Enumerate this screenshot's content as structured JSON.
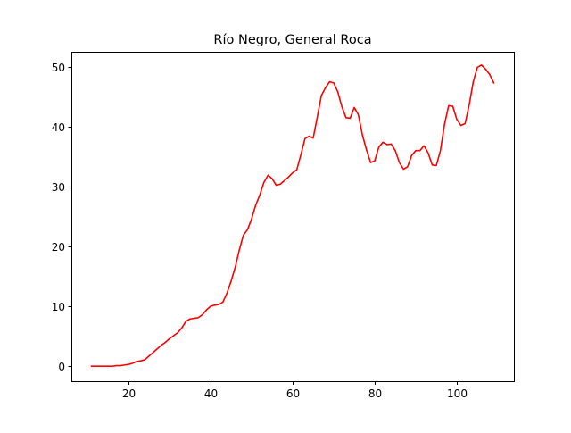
{
  "chart_data": {
    "type": "line",
    "title": "Río Negro, General Roca",
    "xlabel": "",
    "ylabel": "",
    "xlim": [
      6.1,
      113.9
    ],
    "ylim": [
      -2.5,
      52.5
    ],
    "x_ticks": [
      20,
      40,
      60,
      80,
      100
    ],
    "y_ticks": [
      0,
      10,
      20,
      30,
      40,
      50
    ],
    "grid": false,
    "legend": "none",
    "series": [
      {
        "color": "#ff0000",
        "x": [
          11,
          12,
          13,
          14,
          15,
          16,
          17,
          18,
          19,
          20,
          21,
          22,
          23,
          24,
          25,
          26,
          27,
          28,
          29,
          30,
          31,
          32,
          33,
          34,
          35,
          36,
          37,
          38,
          39,
          40,
          41,
          42,
          43,
          44,
          45,
          46,
          47,
          48,
          49,
          50,
          51,
          52,
          53,
          54,
          55,
          56,
          57,
          58,
          59,
          60,
          61,
          62,
          63,
          64,
          65,
          66,
          67,
          68,
          69,
          70,
          71,
          72,
          73,
          74,
          75,
          76,
          77,
          78,
          79,
          80,
          81,
          82,
          83,
          84,
          85,
          86,
          87,
          88,
          89,
          90,
          91,
          92,
          93,
          94,
          95,
          96,
          97,
          98,
          99,
          100,
          101,
          102,
          103,
          104,
          105,
          106,
          107,
          108,
          109
        ],
        "y": [
          0,
          0,
          0,
          0,
          0,
          0,
          0.1,
          0.1,
          0.2,
          0.3,
          0.5,
          0.8,
          0.9,
          1.1,
          1.7,
          2.3,
          2.9,
          3.5,
          4.0,
          4.6,
          5.1,
          5.6,
          6.4,
          7.5,
          7.9,
          8.0,
          8.1,
          8.6,
          9.4,
          10.0,
          10.2,
          10.3,
          10.7,
          12.2,
          14.2,
          16.5,
          19.4,
          21.9,
          22.8,
          24.6,
          26.9,
          28.6,
          30.7,
          31.9,
          31.3,
          30.2,
          30.4,
          31.0,
          31.6,
          32.3,
          32.8,
          35.3,
          38.0,
          38.4,
          38.1,
          41.6,
          45.2,
          46.5,
          47.5,
          47.3,
          45.8,
          43.3,
          41.5,
          41.4,
          43.2,
          42.0,
          38.6,
          36.1,
          34.0,
          34.3,
          36.6,
          37.4,
          37.0,
          37.1,
          36.0,
          34.0,
          32.9,
          33.3,
          35.2,
          36.0,
          36.0,
          36.8,
          35.6,
          33.6,
          33.5,
          36.0,
          40.4,
          43.5,
          43.4,
          41.2,
          40.2,
          40.5,
          43.6,
          47.5,
          49.9,
          50.3,
          49.6,
          48.7,
          47.3
        ]
      }
    ]
  }
}
